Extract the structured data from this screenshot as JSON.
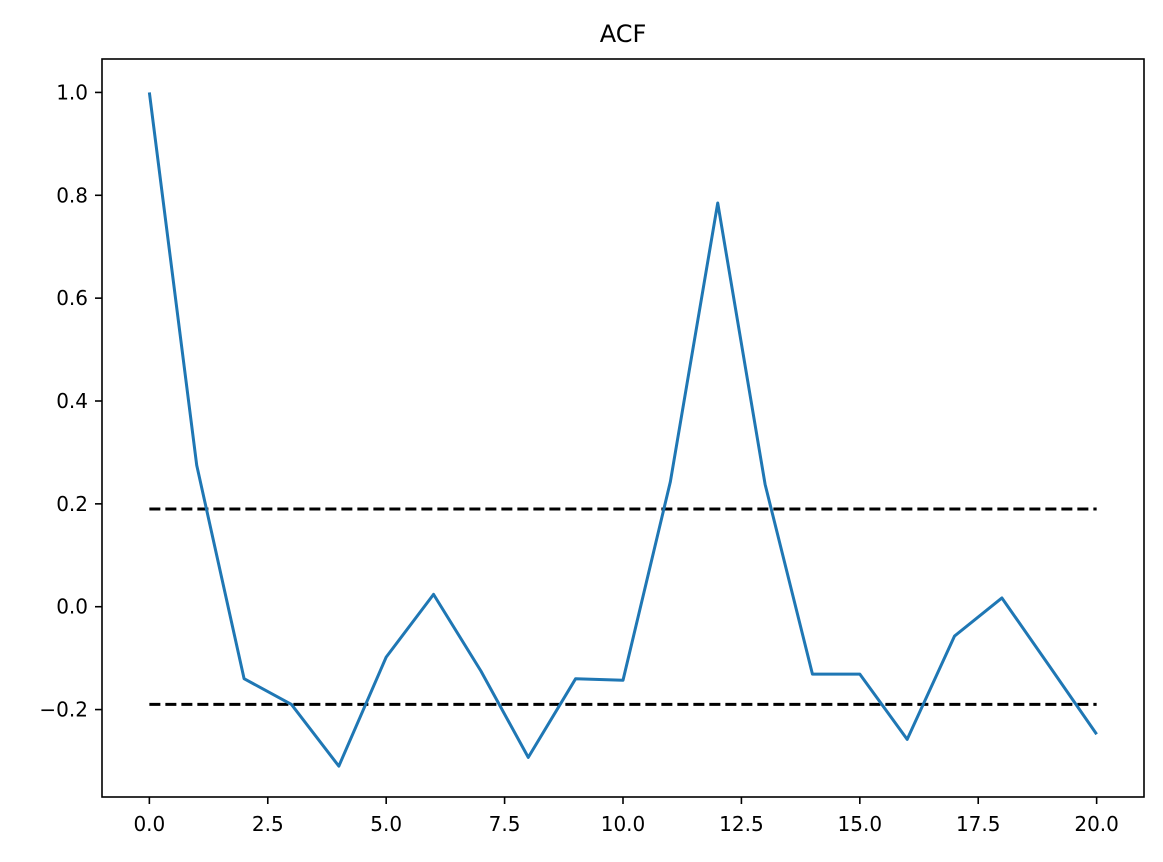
{
  "chart_data": {
    "type": "line",
    "title": "ACF",
    "xlabel": "",
    "ylabel": "",
    "xlim": [
      -1,
      21
    ],
    "ylim": [
      -0.37,
      1.065
    ],
    "x_ticks": [
      0.0,
      2.5,
      5.0,
      7.5,
      10.0,
      12.5,
      15.0,
      17.5,
      20.0
    ],
    "x_tick_labels": [
      "0.0",
      "2.5",
      "5.0",
      "7.5",
      "10.0",
      "12.5",
      "15.0",
      "17.5",
      "20.0"
    ],
    "y_ticks": [
      -0.2,
      0.0,
      0.2,
      0.4,
      0.6,
      0.8,
      1.0
    ],
    "y_tick_labels": [
      "−0.2",
      "0.0",
      "0.2",
      "0.4",
      "0.6",
      "0.8",
      "1.0"
    ],
    "grid": false,
    "series": [
      {
        "color": "#1f77b4",
        "x": [
          0,
          1,
          2,
          3,
          4,
          5,
          6,
          7,
          8,
          9,
          10,
          11,
          12,
          13,
          14,
          15,
          16,
          17,
          18,
          19,
          20
        ],
        "values": [
          1.0,
          0.275,
          -0.14,
          -0.19,
          -0.31,
          -0.098,
          0.024,
          -0.125,
          -0.293,
          -0.14,
          -0.143,
          0.243,
          0.785,
          0.238,
          -0.131,
          -0.131,
          -0.258,
          -0.057,
          0.017,
          -0.115,
          -0.248
        ]
      }
    ],
    "reference_lines": [
      {
        "y": 0.19,
        "x_start": 0,
        "x_end": 20,
        "color": "#000000",
        "style": "dashed"
      },
      {
        "y": -0.19,
        "x_start": 0,
        "x_end": 20,
        "color": "#000000",
        "style": "dashed"
      }
    ]
  }
}
